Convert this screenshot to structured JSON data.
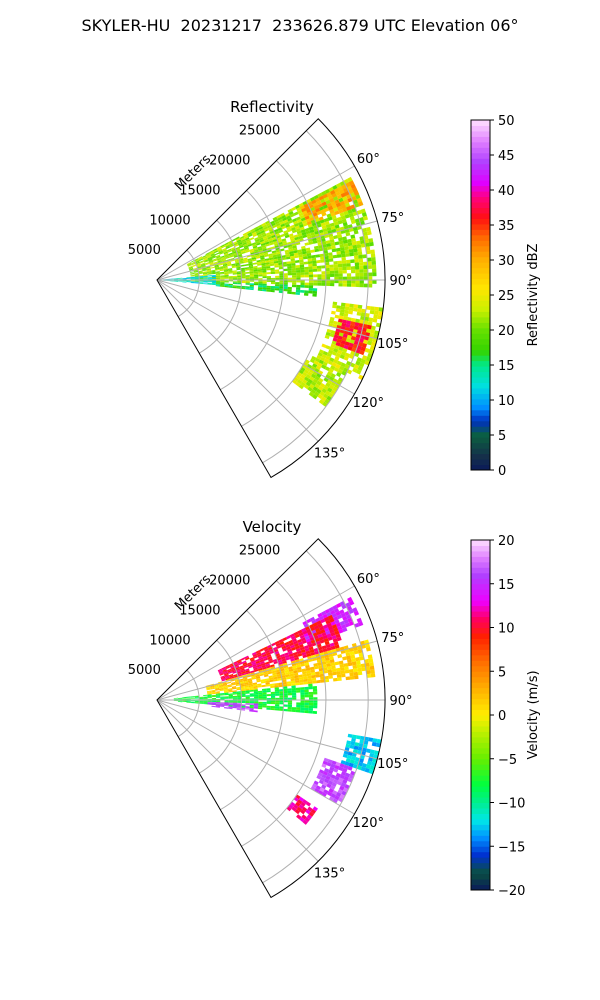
{
  "title": "SKYLER-HU  20231217  233626.879 UTC Elevation 06°",
  "chart_data": [
    {
      "type": "heatmap",
      "subtitle": "Reflectivity",
      "projection": "polar sector (PPI)",
      "radial_label": "Meters",
      "radial_ticks": [
        5000,
        10000,
        15000,
        20000,
        25000
      ],
      "range_max_m": 27000,
      "angle_range_deg": [
        45,
        150
      ],
      "angle_ticks": [
        "60°",
        "75°",
        "90°",
        "105°",
        "120°",
        "135°"
      ],
      "colorbar": {
        "label": "Reflectivity dBZ",
        "range": [
          0,
          50
        ],
        "ticks": [
          "0",
          "5",
          "10",
          "15",
          "20",
          "25",
          "30",
          "35",
          "40",
          "45",
          "50"
        ]
      },
      "echo_regions": [
        {
          "az": [
            62,
            92
          ],
          "range_km": [
            4,
            26
          ],
          "dbz": 21
        },
        {
          "az": [
            63,
            70
          ],
          "range_km": [
            19,
            26
          ],
          "dbz": 30
        },
        {
          "az": [
            85,
            95
          ],
          "range_km": [
            0,
            7
          ],
          "dbz": 12
        },
        {
          "az": [
            92,
            96
          ],
          "range_km": [
            7,
            19
          ],
          "dbz": 16
        },
        {
          "az": [
            97,
            116
          ],
          "range_km": [
            21,
            27
          ],
          "dbz": 23
        },
        {
          "az": [
            102,
            110
          ],
          "range_km": [
            22,
            26
          ],
          "dbz": 36
        },
        {
          "az": [
            116,
            127
          ],
          "range_km": [
            20,
            25
          ],
          "dbz": 22
        }
      ],
      "grid": true
    },
    {
      "type": "heatmap",
      "subtitle": "Velocity",
      "projection": "polar sector (PPI)",
      "radial_label": "Meters",
      "radial_ticks": [
        5000,
        10000,
        15000,
        20000,
        25000
      ],
      "range_max_m": 27000,
      "angle_range_deg": [
        45,
        150
      ],
      "angle_ticks": [
        "60°",
        "75°",
        "90°",
        "105°",
        "120°",
        "135°"
      ],
      "colorbar": {
        "label": "Velocity (m/s)",
        "range": [
          -20,
          20
        ],
        "ticks": [
          "−20",
          "−15",
          "−10",
          "−5",
          "0",
          "5",
          "10",
          "15",
          "20"
        ]
      },
      "echo_regions": [
        {
          "az": [
            62,
            70
          ],
          "range_km": [
            19,
            26
          ],
          "ms": 14
        },
        {
          "az": [
            64,
            74
          ],
          "range_km": [
            8,
            23
          ],
          "ms": 10
        },
        {
          "az": [
            74,
            84
          ],
          "range_km": [
            6,
            26
          ],
          "ms": 1
        },
        {
          "az": [
            84,
            95
          ],
          "range_km": [
            2,
            19
          ],
          "ms": -8
        },
        {
          "az": [
            92,
            97
          ],
          "range_km": [
            6,
            12
          ],
          "ms": 16
        },
        {
          "az": [
            100,
            109
          ],
          "range_km": [
            23,
            27
          ],
          "ms": -13
        },
        {
          "az": [
            109,
            120
          ],
          "range_km": [
            21,
            25
          ],
          "ms": 16
        },
        {
          "az": [
            124,
            130
          ],
          "range_km": [
            20,
            23
          ],
          "ms": 11
        }
      ],
      "grid": true
    }
  ]
}
